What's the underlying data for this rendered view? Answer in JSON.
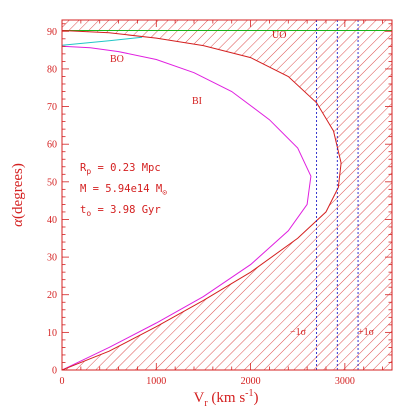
{
  "chart_data": {
    "type": "line",
    "xlabel": {
      "base": "V",
      "sub": "r",
      "unit_pre": " (km s",
      "sup": "-1",
      "unit_post": ")"
    },
    "ylabel": {
      "greek": "α",
      "rest": "(degrees)"
    },
    "xlim": [
      0,
      3500
    ],
    "ylim": [
      0,
      93
    ],
    "xticks": [
      0,
      1000,
      2000,
      3000
    ],
    "yticks": [
      0,
      10,
      20,
      30,
      40,
      50,
      60,
      70,
      80,
      90
    ],
    "annotations": {
      "rp": {
        "pre": "R",
        "sub": "p",
        "post": " = 0.23 Mpc"
      },
      "mass": {
        "pre": "M = 5.94e14 M",
        "sub": "⊙"
      },
      "time": {
        "pre": "t",
        "sub": "o",
        "post": " = 3.98 Gyr"
      }
    },
    "sigma_labels": {
      "minus": "−1σ",
      "plus": "+1σ"
    },
    "sigma_lines": {
      "minus": 2700,
      "center": 2920,
      "plus": 3140
    },
    "series": [
      {
        "name": "UO",
        "color": "#18b418",
        "points": [
          [
            0,
            90.2
          ],
          [
            3500,
            90.2
          ]
        ]
      },
      {
        "name": "BO",
        "color": "#22c6c6",
        "points": [
          [
            0,
            86.3
          ],
          [
            250,
            86.9
          ],
          [
            500,
            87.5
          ],
          [
            700,
            88.0
          ],
          [
            850,
            88.4
          ]
        ]
      },
      {
        "name": "BI",
        "color": "#e020e0",
        "points": [
          [
            0,
            86.0
          ],
          [
            300,
            85.6
          ],
          [
            600,
            84.6
          ],
          [
            1000,
            82.5
          ],
          [
            1400,
            79.0
          ],
          [
            1800,
            74.0
          ],
          [
            2200,
            66.5
          ],
          [
            2500,
            59.0
          ],
          [
            2640,
            51.5
          ],
          [
            2600,
            44.0
          ],
          [
            2400,
            37.0
          ],
          [
            2000,
            28.0
          ],
          [
            1500,
            19.5
          ],
          [
            1000,
            12.5
          ],
          [
            500,
            6.0
          ],
          [
            0,
            0
          ]
        ]
      },
      {
        "name": "",
        "color": "#d42020",
        "points": [
          [
            0,
            90.2
          ],
          [
            500,
            89.6
          ],
          [
            1000,
            88.2
          ],
          [
            1500,
            86.2
          ],
          [
            2000,
            83.0
          ],
          [
            2400,
            78.0
          ],
          [
            2700,
            71.0
          ],
          [
            2880,
            63.5
          ],
          [
            2960,
            55.0
          ],
          [
            2930,
            48.5
          ],
          [
            2800,
            42.0
          ],
          [
            2500,
            35.0
          ],
          [
            2000,
            26.0
          ],
          [
            1500,
            18.5
          ],
          [
            1000,
            11.5
          ],
          [
            500,
            5.0
          ],
          [
            0,
            0
          ]
        ]
      }
    ],
    "legend": "none",
    "grid": false
  }
}
